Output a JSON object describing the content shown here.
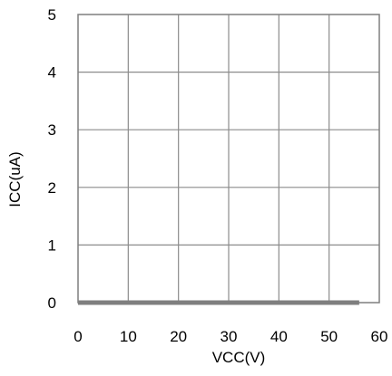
{
  "chart_data": {
    "type": "line",
    "title": "",
    "xlabel": "VCC(V)",
    "ylabel": "ICC(uA)",
    "xlim": [
      0,
      60
    ],
    "ylim": [
      0,
      5
    ],
    "x_ticks": [
      0,
      10,
      20,
      30,
      40,
      50,
      60
    ],
    "y_ticks": [
      0,
      1,
      2,
      3,
      4,
      5
    ],
    "x_tick_labels": [
      "0",
      "10",
      "20",
      "30",
      "40",
      "50",
      "60"
    ],
    "y_tick_labels": [
      "0",
      "1",
      "2",
      "3",
      "4",
      "5"
    ],
    "grid": true,
    "legend": "none",
    "series": [
      {
        "x": [
          0,
          56
        ],
        "y": [
          0,
          0
        ],
        "color": "#7f7f7f"
      }
    ]
  }
}
